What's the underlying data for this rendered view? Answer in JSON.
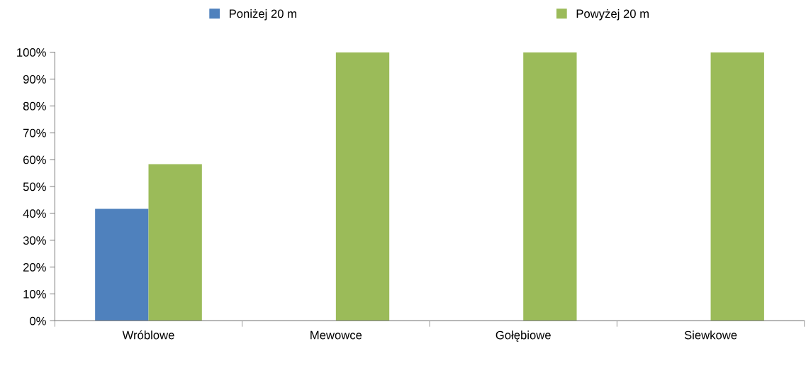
{
  "chart_data": {
    "type": "bar",
    "categories": [
      "Wróblowe",
      "Mewowce",
      "Gołębiowe",
      "Siewkowe"
    ],
    "series": [
      {
        "name": "Poniżej 20 m",
        "color": "#4f81bd",
        "values": [
          41.7,
          0,
          0,
          0
        ]
      },
      {
        "name": "Powyżej 20 m",
        "color": "#9bbb59",
        "values": [
          58.3,
          100,
          100,
          100
        ]
      }
    ],
    "ylim": [
      0,
      100
    ],
    "yticks": [
      {
        "value": 0,
        "label": "0%"
      },
      {
        "value": 10,
        "label": "10%"
      },
      {
        "value": 20,
        "label": "20%"
      },
      {
        "value": 30,
        "label": "30%"
      },
      {
        "value": 40,
        "label": "40%"
      },
      {
        "value": 50,
        "label": "50%"
      },
      {
        "value": 60,
        "label": "60%"
      },
      {
        "value": 70,
        "label": "70%"
      },
      {
        "value": 80,
        "label": "80%"
      },
      {
        "value": 90,
        "label": "90%"
      },
      {
        "value": 100,
        "label": "100%"
      }
    ],
    "grid": false,
    "legend": "top"
  }
}
